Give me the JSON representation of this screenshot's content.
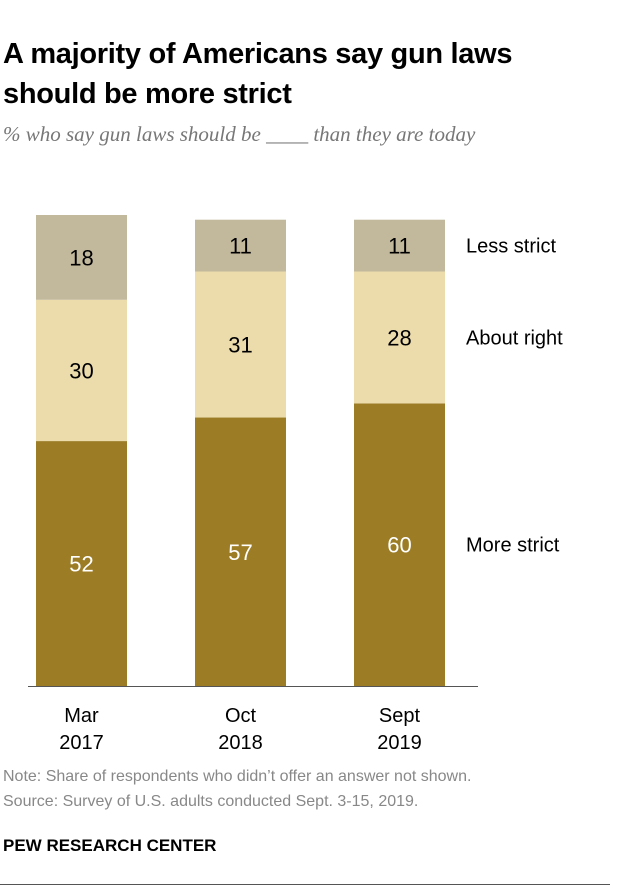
{
  "title": "A majority of Americans say gun laws should be more strict",
  "subtitle": "% who say gun laws should be ____ than they are today",
  "chart_data": {
    "type": "bar",
    "stacked": true,
    "categories": [
      "Mar 2017",
      "Oct 2018",
      "Sept 2019"
    ],
    "category_lines": [
      [
        "Mar",
        "2017"
      ],
      [
        "Oct",
        "2018"
      ],
      [
        "Sept",
        "2019"
      ]
    ],
    "series": [
      {
        "name": "More strict",
        "values": [
          52,
          57,
          60
        ],
        "color": "#9c7c24",
        "label_color": "#ffffff"
      },
      {
        "name": "About right",
        "values": [
          30,
          31,
          28
        ],
        "color": "#ecdcac",
        "label_color": "#000000"
      },
      {
        "name": "Less strict",
        "values": [
          18,
          11,
          11
        ],
        "color": "#c2b89c",
        "label_color": "#000000"
      }
    ],
    "legend_placement": "right, inline",
    "ylim": [
      0,
      100
    ],
    "grid": false
  },
  "note": "Note: Share of respondents who didn’t offer an answer not shown.",
  "source": "Source: Survey of U.S. adults conducted Sept. 3-15, 2019.",
  "brand": "PEW RESEARCH CENTER"
}
